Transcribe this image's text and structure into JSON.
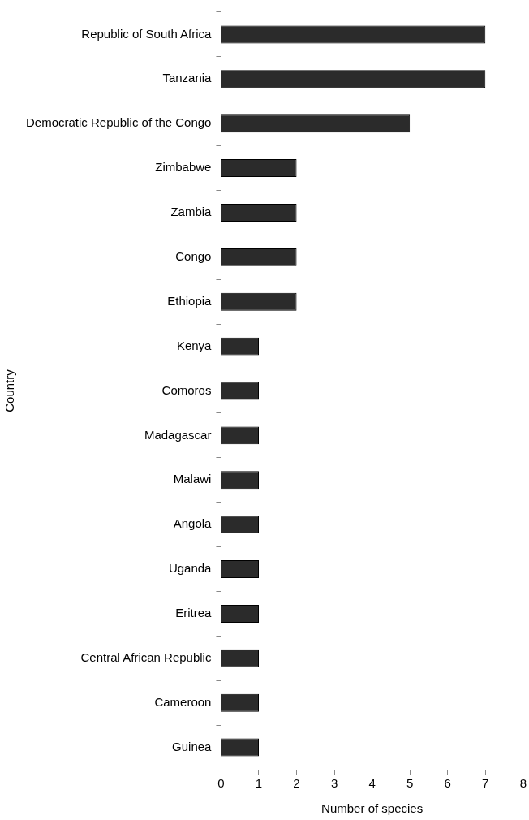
{
  "chart_data": {
    "type": "bar",
    "orientation": "horizontal",
    "xlabel": "Number of species",
    "ylabel": "Country",
    "categories": [
      "Republic of South Africa",
      "Tanzania",
      "Democratic Republic of the Congo",
      "Zimbabwe",
      "Zambia",
      "Congo",
      "Ethiopia",
      "Kenya",
      "Comoros",
      "Madagascar",
      "Malawi",
      "Angola",
      "Uganda",
      "Eritrea",
      "Central African Republic",
      "Cameroon",
      "Guinea"
    ],
    "values": [
      7,
      7,
      5,
      2,
      2,
      2,
      2,
      1,
      1,
      1,
      1,
      1,
      1,
      1,
      1,
      1,
      1
    ],
    "color": "#2b2b2b",
    "xlim": [
      0,
      8
    ],
    "xticks": [
      0,
      1,
      2,
      3,
      4,
      5,
      6,
      7,
      8
    ],
    "grid": false,
    "legend": false
  }
}
